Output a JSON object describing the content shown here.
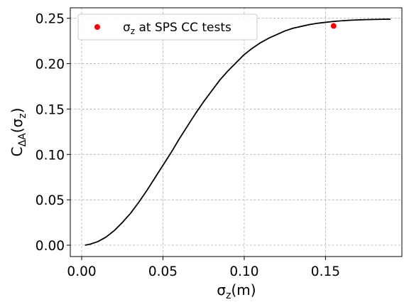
{
  "chart_data": {
    "type": "line",
    "xlabel": {
      "main": "σ",
      "sub": "z",
      "tail": "(m)"
    },
    "ylabel": {
      "main": "C",
      "sub": "ΔA",
      "tail": "(σ",
      "sub2": "z",
      "tail2": ")"
    },
    "xlim": [
      -0.007,
      0.197
    ],
    "ylim": [
      -0.0125,
      0.2615
    ],
    "xticks": [
      0.0,
      0.05,
      0.1,
      0.15
    ],
    "xtick_labels": [
      "0.00",
      "0.05",
      "0.10",
      "0.15"
    ],
    "yticks": [
      0.0,
      0.05,
      0.1,
      0.15,
      0.2,
      0.25
    ],
    "ytick_labels": [
      "0.00",
      "0.05",
      "0.10",
      "0.15",
      "0.20",
      "0.25"
    ],
    "grid": true,
    "legend_position": "top-left",
    "series": [
      {
        "kind": "line",
        "color": "#000000",
        "x": [
          0.002,
          0.005,
          0.01,
          0.015,
          0.02,
          0.025,
          0.03,
          0.035,
          0.04,
          0.045,
          0.05,
          0.055,
          0.06,
          0.065,
          0.07,
          0.075,
          0.08,
          0.085,
          0.09,
          0.095,
          0.1,
          0.105,
          0.11,
          0.115,
          0.12,
          0.125,
          0.13,
          0.135,
          0.14,
          0.145,
          0.15,
          0.155,
          0.16,
          0.165,
          0.17,
          0.175,
          0.18,
          0.185,
          0.19
        ],
        "y": [
          0.0,
          0.001,
          0.004,
          0.009,
          0.016,
          0.025,
          0.035,
          0.047,
          0.06,
          0.074,
          0.088,
          0.102,
          0.117,
          0.131,
          0.145,
          0.158,
          0.17,
          0.182,
          0.192,
          0.201,
          0.21,
          0.217,
          0.223,
          0.228,
          0.232,
          0.236,
          0.239,
          0.241,
          0.243,
          0.2445,
          0.2455,
          0.2465,
          0.2472,
          0.2478,
          0.2482,
          0.2485,
          0.2487,
          0.2489,
          0.249
        ]
      },
      {
        "kind": "scatter",
        "color": "#ff0000",
        "x": [
          0.155
        ],
        "y": [
          0.2415
        ],
        "legend": {
          "main": "σ",
          "sub": "z",
          "tail": " at SPS CC tests"
        }
      }
    ]
  }
}
